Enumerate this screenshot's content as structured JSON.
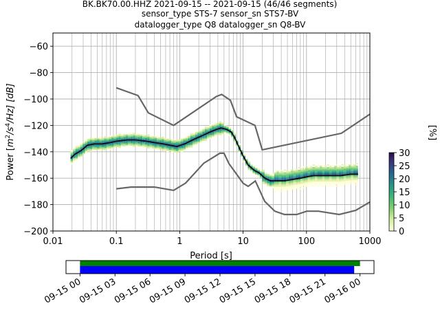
{
  "chart_data": {
    "type": "heatmap",
    "title_lines": [
      "BK.BK70.00.HHZ   2021-09-15 -- 2021-09-15  (46/46 segments)",
      "sensor_type STS-7 sensor_sn STS7-BV",
      "datalogger_type Q8 datalogger_sn Q8-BV"
    ],
    "xlabel": "Period [s]",
    "ylabel": "Power [m²/s⁴/Hz] [dB]",
    "ylabel_parts": {
      "a": "Power [",
      "m": "m",
      "m_sup": "2",
      "s": "/s",
      "s_sup": "4",
      "rest": "/Hz] [dB]"
    },
    "x_scale": "log",
    "xlim": [
      0.01,
      1000
    ],
    "ylim": [
      -200,
      -50
    ],
    "grid": true,
    "x_ticks": [
      "0.01",
      "0.1",
      "1",
      "10",
      "100",
      "1000"
    ],
    "y_ticks": [
      "−60",
      "−80",
      "−100",
      "−120",
      "−140",
      "−160",
      "−180",
      "−200"
    ],
    "colorbar": {
      "label": "[%]",
      "range": [
        0,
        30
      ],
      "ticks": [
        "0",
        "5",
        "10",
        "15",
        "20",
        "25",
        "30"
      ]
    },
    "high_noise_model": {
      "x": [
        0.1,
        0.22,
        0.32,
        0.8,
        3.8,
        4.6,
        6.3,
        7.9,
        15.4,
        20,
        354.8,
        1000
      ],
      "y": [
        -91.5,
        -97.4,
        -110.5,
        -120,
        -98,
        -96.5,
        -101,
        -113.5,
        -120,
        -138.5,
        -126,
        -111.5
      ]
    },
    "low_noise_model": {
      "x": [
        0.1,
        0.17,
        0.4,
        0.8,
        1.24,
        2.4,
        4.3,
        5,
        6,
        10,
        12,
        15.6,
        21.9,
        31.6,
        45,
        70,
        101,
        154,
        328,
        600,
        1000
      ],
      "y": [
        -168,
        -166.7,
        -166.7,
        -169.2,
        -163.7,
        -148.6,
        -141.1,
        -141.1,
        -149,
        -163.8,
        -166.2,
        -162.1,
        -177.5,
        -185,
        -187.5,
        -187.5,
        -185,
        -185,
        -187.5,
        -184.4,
        -178
      ]
    },
    "mode": {
      "x": [
        0.019,
        0.022,
        0.028,
        0.035,
        0.045,
        0.06,
        0.08,
        0.1,
        0.15,
        0.2,
        0.3,
        0.4,
        0.55,
        0.7,
        0.9,
        1.2,
        1.6,
        2.2,
        3,
        3.8,
        4.5,
        5.5,
        6.5,
        7.5,
        8.5,
        10,
        12,
        15,
        18,
        22,
        27,
        35,
        45,
        60,
        80,
        100,
        130,
        180,
        250,
        350,
        500,
        650
      ],
      "y": [
        -145,
        -142,
        -139,
        -135,
        -134,
        -134,
        -133,
        -132,
        -131,
        -131,
        -132,
        -133,
        -134,
        -135,
        -136,
        -134,
        -131,
        -128,
        -125,
        -123,
        -122,
        -123,
        -125,
        -130,
        -136,
        -143,
        -150,
        -154,
        -156,
        -160,
        -162,
        -162,
        -162,
        -161,
        -160,
        -159,
        -158,
        -158,
        -158,
        -158,
        -157,
        -157
      ]
    },
    "date_axis": {
      "ticks": [
        "09-15 00",
        "09-15 03",
        "09-15 06",
        "09-15 09",
        "09-15 12",
        "09-15 15",
        "09-15 18",
        "09-15 21",
        "09-16 00"
      ],
      "range_hours": [
        -1.2,
        25.2
      ],
      "bars": [
        {
          "name": "data",
          "color": "#008000",
          "start_h": 0,
          "end_h": 24.0
        },
        {
          "name": "used",
          "color": "#0000ff",
          "start_h": 0,
          "end_h": 23.5
        }
      ]
    }
  }
}
